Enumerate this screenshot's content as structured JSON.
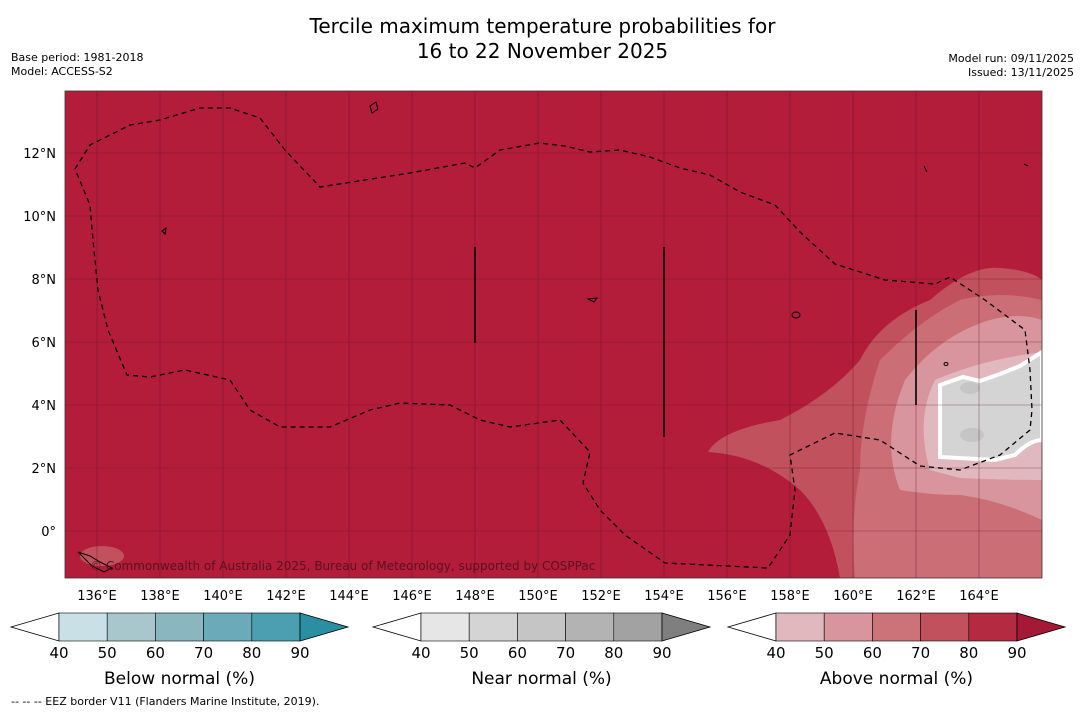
{
  "title": {
    "line1": "Tercile maximum temperature probabilities for",
    "line2": "16 to 22 November 2025"
  },
  "meta": {
    "base_period": "Base period: 1981-2018",
    "model": "Model: ACCESS-S2",
    "model_run": "Model run: 09/11/2025",
    "issued": "Issued: 13/11/2025"
  },
  "map": {
    "lon_labels": [
      "136°E",
      "138°E",
      "140°E",
      "142°E",
      "144°E",
      "146°E",
      "148°E",
      "150°E",
      "152°E",
      "154°E",
      "156°E",
      "158°E",
      "160°E",
      "162°E",
      "164°E"
    ],
    "lat_labels": [
      "12°N",
      "10°N",
      "8°N",
      "6°N",
      "4°N",
      "2°N",
      "0°"
    ],
    "copyright": "© Commonwealth of Australia 2025, Bureau of Meteorology, supported by COSPPac",
    "dominant_category": "Above normal 80-90%"
  },
  "colorbars": [
    {
      "name": "below",
      "label": "Below normal (%)",
      "ticks": [
        "40",
        "50",
        "60",
        "70",
        "80",
        "90"
      ],
      "colors": [
        "#ffffff",
        "#c9e1e6",
        "#a7c7cd",
        "#8ab6c0",
        "#6aaab9",
        "#4b9fb0",
        "#2a8fa3"
      ]
    },
    {
      "name": "near",
      "label": "Near normal (%)",
      "ticks": [
        "40",
        "50",
        "60",
        "70",
        "80",
        "90"
      ],
      "colors": [
        "#ffffff",
        "#e6e6e6",
        "#d4d4d4",
        "#c5c5c5",
        "#b3b3b3",
        "#a2a2a2",
        "#7f7f7f"
      ]
    },
    {
      "name": "above",
      "label": "Above normal (%)",
      "ticks": [
        "40",
        "50",
        "60",
        "70",
        "80",
        "90"
      ],
      "colors": [
        "#ffffff",
        "#e2b8bf",
        "#d8959d",
        "#cc7379",
        "#c1525d",
        "#b32a41",
        "#a41935"
      ]
    }
  ],
  "footnote": "-- -- -- EEZ border V11 (Flanders Marine Institute, 2019)."
}
